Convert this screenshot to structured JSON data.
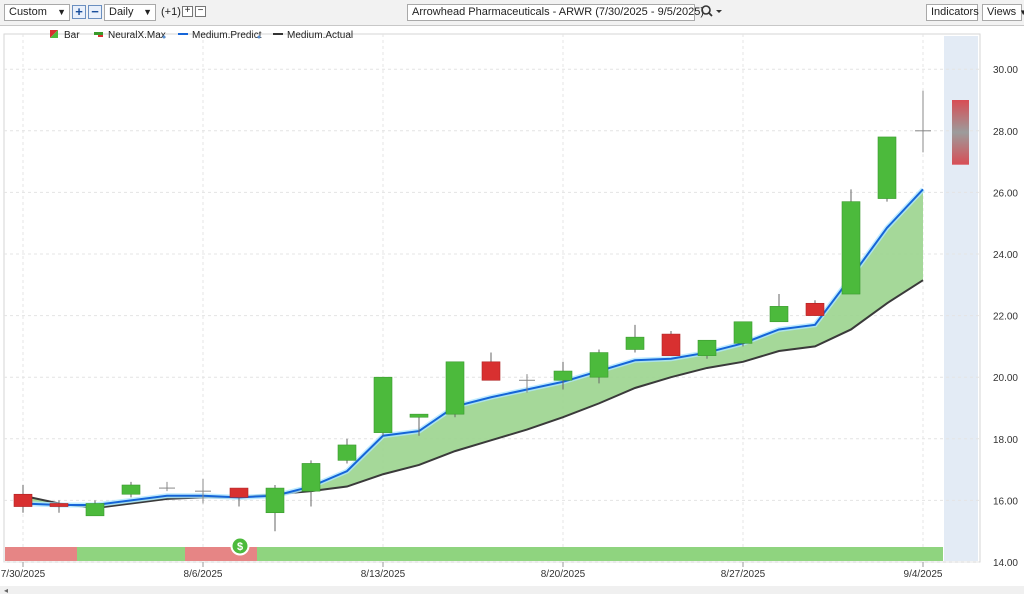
{
  "toolbar": {
    "range_label": "Custom",
    "interval_label": "Daily",
    "offset_label": "(+1)",
    "title": "Arrowhead Pharmaceuticals - ARWR (7/30/2025 - 9/5/2025)",
    "indicators_label": "Indicators",
    "views_label": "Views",
    "plus": "+",
    "minus": "−"
  },
  "legend": [
    {
      "label": "Bar",
      "color": "#d83030"
    },
    {
      "label": "NeuralX.Max",
      "color": "#3a9a2a"
    },
    {
      "label": "Medium.Predict",
      "color": "#1565d8"
    },
    {
      "label": "Medium.Actual",
      "color": "#333333"
    }
  ],
  "signal_marker": "$",
  "colors": {
    "up": "#4cba3c",
    "down": "#d83030",
    "predict": "#1565d8",
    "actual": "#3a3a3a",
    "fill": "#9bd48e",
    "band_green": "#8fd47f",
    "band_red": "#e68585"
  },
  "chart_data": {
    "type": "candlestick",
    "ylim": [
      14,
      31
    ],
    "yticks": [
      "30.00",
      "28.00",
      "26.00",
      "24.00",
      "22.00",
      "20.00",
      "18.00",
      "16.00",
      "14.00"
    ],
    "ytick_values": [
      30,
      28,
      26,
      24,
      22,
      20,
      18,
      16,
      14
    ],
    "xtick_labels": [
      "7/30/2025",
      "8/6/2025",
      "8/13/2025",
      "8/20/2025",
      "8/27/2025",
      "9/4/2025"
    ],
    "xtick_index": [
      0,
      5,
      10,
      15,
      20,
      25
    ],
    "candles": [
      {
        "o": 16.2,
        "h": 16.5,
        "l": 15.6,
        "c": 15.8
      },
      {
        "o": 15.9,
        "h": 16.0,
        "l": 15.6,
        "c": 15.8
      },
      {
        "o": 15.5,
        "h": 16.0,
        "l": 15.5,
        "c": 15.9
      },
      {
        "o": 16.2,
        "h": 16.6,
        "l": 16.1,
        "c": 16.5
      },
      {
        "o": 16.4,
        "h": 16.6,
        "l": 16.3,
        "c": 16.45
      },
      {
        "o": 16.3,
        "h": 16.7,
        "l": 15.9,
        "c": 16.3
      },
      {
        "o": 16.4,
        "h": 16.4,
        "l": 15.8,
        "c": 16.1
      },
      {
        "o": 15.6,
        "h": 16.5,
        "l": 15.0,
        "c": 16.4
      },
      {
        "o": 16.3,
        "h": 17.3,
        "l": 15.8,
        "c": 17.2
      },
      {
        "o": 17.3,
        "h": 18.0,
        "l": 17.2,
        "c": 17.8
      },
      {
        "o": 18.2,
        "h": 20.0,
        "l": 18.1,
        "c": 20.0
      },
      {
        "o": 18.7,
        "h": 18.8,
        "l": 18.1,
        "c": 18.8
      },
      {
        "o": 18.8,
        "h": 20.5,
        "l": 18.7,
        "c": 20.5
      },
      {
        "o": 20.5,
        "h": 20.8,
        "l": 19.9,
        "c": 19.9
      },
      {
        "o": 19.9,
        "h": 20.1,
        "l": 19.5,
        "c": 19.85
      },
      {
        "o": 19.9,
        "h": 20.5,
        "l": 19.6,
        "c": 20.2
      },
      {
        "o": 20.0,
        "h": 20.9,
        "l": 19.8,
        "c": 20.8
      },
      {
        "o": 20.9,
        "h": 21.7,
        "l": 20.8,
        "c": 21.3
      },
      {
        "o": 21.4,
        "h": 21.5,
        "l": 20.7,
        "c": 20.7
      },
      {
        "o": 20.7,
        "h": 21.2,
        "l": 20.6,
        "c": 21.2
      },
      {
        "o": 21.1,
        "h": 21.8,
        "l": 21.0,
        "c": 21.8
      },
      {
        "o": 21.8,
        "h": 22.7,
        "l": 21.8,
        "c": 22.3
      },
      {
        "o": 22.4,
        "h": 22.5,
        "l": 22.0,
        "c": 22.0
      },
      {
        "o": 22.7,
        "h": 26.1,
        "l": 22.7,
        "c": 25.7
      },
      {
        "o": 25.8,
        "h": 27.8,
        "l": 25.7,
        "c": 27.8
      },
      {
        "o": 28.0,
        "h": 29.3,
        "l": 27.3,
        "c": 28.0
      }
    ],
    "forecast": {
      "high": 29.0,
      "low": 26.9
    },
    "predict": [
      15.9,
      15.85,
      15.85,
      16.0,
      16.15,
      16.15,
      16.1,
      16.15,
      16.45,
      16.95,
      18.1,
      18.25,
      19.05,
      19.35,
      19.6,
      19.85,
      20.2,
      20.55,
      20.6,
      20.8,
      21.1,
      21.55,
      21.7,
      23.25,
      24.85,
      26.1
    ],
    "actual": [
      16.15,
      15.9,
      15.75,
      15.9,
      16.05,
      16.1,
      16.1,
      16.2,
      16.3,
      16.45,
      16.85,
      17.15,
      17.6,
      17.95,
      18.3,
      18.7,
      19.15,
      19.65,
      20.0,
      20.3,
      20.5,
      20.85,
      21.0,
      21.55,
      22.4,
      23.15
    ],
    "signal_bands": [
      {
        "from": 0,
        "to": 1,
        "state": "sell"
      },
      {
        "from": 2,
        "to": 4,
        "state": "buy"
      },
      {
        "from": 5,
        "to": 6,
        "state": "sell"
      },
      {
        "from": 7,
        "to": 25,
        "state": "buy"
      }
    ]
  }
}
